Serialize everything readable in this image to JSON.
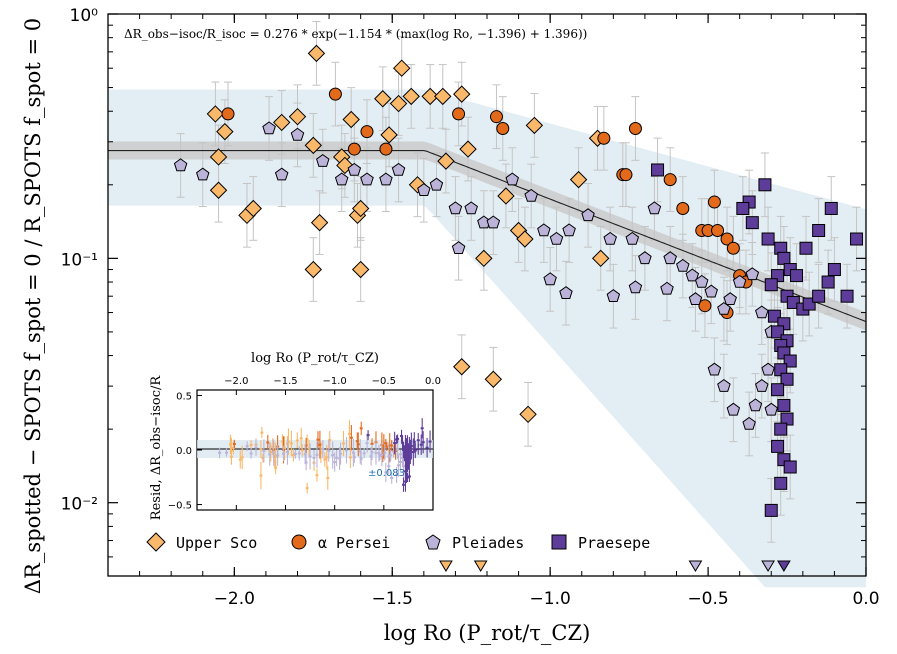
{
  "chart_data": {
    "type": "scatter",
    "formula": "ΔR_obs−isoc/R_isoc = 0.276 * exp(−1.154 * (max(log Ro, −1.396) + 1.396))",
    "xlabel": "log Ro (P_rot/τ_CZ)",
    "ylabel": "ΔR_spotted − SPOTS f_spot = 0 / R_SPOTS f_spot = 0",
    "xlim": [
      -2.4,
      0.0
    ],
    "ylim_log10": [
      -2.3,
      0.0
    ],
    "x_ticks": [
      "−2.0",
      "−1.5",
      "−1.0",
      "−0.5",
      "0.0"
    ],
    "x_tick_values": [
      -2.0,
      -1.5,
      -1.0,
      -0.5,
      0.0
    ],
    "y_ticks": [
      "10⁰",
      "10⁻¹",
      "10⁻²"
    ],
    "y_tick_values": [
      1.0,
      0.1,
      0.01
    ],
    "model": {
      "amplitude": 0.276,
      "slope": -1.154,
      "break": -1.396
    },
    "series": [
      {
        "name": "Upper Sco",
        "marker": "diamond",
        "color": "#f9b86a",
        "points": [
          [
            -2.06,
            0.39
          ],
          [
            -2.03,
            0.33
          ],
          [
            -1.96,
            0.15
          ],
          [
            -2.05,
            0.26
          ],
          [
            -2.05,
            0.19
          ],
          [
            -1.94,
            0.16
          ],
          [
            -1.85,
            0.36
          ],
          [
            -1.8,
            0.38
          ],
          [
            -1.74,
            0.69
          ],
          [
            -1.75,
            0.29
          ],
          [
            -1.73,
            0.14
          ],
          [
            -1.75,
            0.09
          ],
          [
            -1.63,
            0.37
          ],
          [
            -1.66,
            0.26
          ],
          [
            -1.65,
            0.24
          ],
          [
            -1.61,
            0.15
          ],
          [
            -1.6,
            0.16
          ],
          [
            -1.6,
            0.09
          ],
          [
            -1.53,
            0.45
          ],
          [
            -1.51,
            0.32
          ],
          [
            -1.48,
            0.43
          ],
          [
            -1.47,
            0.6
          ],
          [
            -1.44,
            0.46
          ],
          [
            -1.42,
            0.2
          ],
          [
            -1.38,
            0.46
          ],
          [
            -1.34,
            0.46
          ],
          [
            -1.33,
            0.25
          ],
          [
            -1.28,
            0.47
          ],
          [
            -1.26,
            0.28
          ],
          [
            -1.14,
            0.18
          ],
          [
            -1.1,
            0.13
          ],
          [
            -1.05,
            0.35
          ],
          [
            -1.08,
            0.12
          ],
          [
            -1.21,
            0.1
          ],
          [
            -1.18,
            0.032
          ],
          [
            -1.28,
            0.036
          ],
          [
            -1.07,
            0.023
          ],
          [
            -0.85,
            0.31
          ],
          [
            -0.91,
            0.21
          ],
          [
            -0.84,
            0.1
          ]
        ]
      },
      {
        "name": "α Persei",
        "marker": "circle",
        "color": "#e36a1b",
        "points": [
          [
            -2.02,
            0.39
          ],
          [
            -1.68,
            0.47
          ],
          [
            -1.62,
            0.28
          ],
          [
            -1.58,
            0.33
          ],
          [
            -1.52,
            0.28
          ],
          [
            -1.29,
            0.39
          ],
          [
            -1.17,
            0.38
          ],
          [
            -1.15,
            0.34
          ],
          [
            -0.83,
            0.31
          ],
          [
            -0.77,
            0.22
          ],
          [
            -0.76,
            0.22
          ],
          [
            -0.73,
            0.34
          ],
          [
            -0.62,
            0.21
          ],
          [
            -0.58,
            0.16
          ],
          [
            -0.52,
            0.13
          ],
          [
            -0.5,
            0.13
          ],
          [
            -0.48,
            0.17
          ],
          [
            -0.47,
            0.13
          ],
          [
            -0.44,
            0.12
          ],
          [
            -0.42,
            0.11
          ],
          [
            -0.4,
            0.085
          ],
          [
            -0.38,
            0.08
          ],
          [
            -0.51,
            0.064
          ],
          [
            -0.44,
            0.06
          ]
        ]
      },
      {
        "name": "Pleiades",
        "marker": "pentagon",
        "color": "#bcb4d8",
        "points": [
          [
            -2.17,
            0.24
          ],
          [
            -2.1,
            0.22
          ],
          [
            -1.89,
            0.34
          ],
          [
            -1.85,
            0.22
          ],
          [
            -1.8,
            0.32
          ],
          [
            -1.72,
            0.25
          ],
          [
            -1.66,
            0.21
          ],
          [
            -1.62,
            0.23
          ],
          [
            -1.58,
            0.21
          ],
          [
            -1.52,
            0.21
          ],
          [
            -1.48,
            0.23
          ],
          [
            -1.4,
            0.19
          ],
          [
            -1.36,
            0.2
          ],
          [
            -1.3,
            0.16
          ],
          [
            -1.29,
            0.11
          ],
          [
            -1.25,
            0.16
          ],
          [
            -1.21,
            0.14
          ],
          [
            -1.18,
            0.14
          ],
          [
            -1.12,
            0.21
          ],
          [
            -1.06,
            0.18
          ],
          [
            -1.02,
            0.13
          ],
          [
            -0.98,
            0.12
          ],
          [
            -0.94,
            0.13
          ],
          [
            -0.88,
            0.15
          ],
          [
            -0.81,
            0.12
          ],
          [
            -0.74,
            0.12
          ],
          [
            -0.7,
            0.1
          ],
          [
            -0.67,
            0.16
          ],
          [
            -0.62,
            0.1
          ],
          [
            -0.58,
            0.093
          ],
          [
            -0.55,
            0.085
          ],
          [
            -0.52,
            0.08
          ],
          [
            -0.49,
            0.073
          ],
          [
            -0.45,
            0.062
          ],
          [
            -0.43,
            0.068
          ],
          [
            -0.4,
            0.08
          ],
          [
            -0.36,
            0.086
          ],
          [
            -0.33,
            0.06
          ],
          [
            -0.3,
            0.05
          ],
          [
            -0.31,
            0.035
          ],
          [
            -0.33,
            0.03
          ],
          [
            -0.35,
            0.025
          ],
          [
            -0.3,
            0.024
          ],
          [
            -0.37,
            0.021
          ],
          [
            -0.42,
            0.024
          ],
          [
            -0.45,
            0.03
          ],
          [
            -0.48,
            0.035
          ],
          [
            -0.8,
            0.07
          ],
          [
            -0.73,
            0.076
          ],
          [
            -0.63,
            0.075
          ],
          [
            -0.54,
            0.068
          ],
          [
            -0.95,
            0.072
          ],
          [
            -1.0,
            0.082
          ]
        ]
      },
      {
        "name": "Praesepe",
        "marker": "square",
        "color": "#5e3c99",
        "points": [
          [
            -0.66,
            0.23
          ],
          [
            -0.32,
            0.2
          ],
          [
            -0.37,
            0.17
          ],
          [
            -0.39,
            0.16
          ],
          [
            -0.36,
            0.14
          ],
          [
            -0.31,
            0.12
          ],
          [
            -0.27,
            0.11
          ],
          [
            -0.26,
            0.1
          ],
          [
            -0.24,
            0.09
          ],
          [
            -0.22,
            0.085
          ],
          [
            -0.28,
            0.085
          ],
          [
            -0.3,
            0.078
          ],
          [
            -0.25,
            0.07
          ],
          [
            -0.23,
            0.066
          ],
          [
            -0.2,
            0.062
          ],
          [
            -0.18,
            0.065
          ],
          [
            -0.15,
            0.07
          ],
          [
            -0.12,
            0.08
          ],
          [
            -0.1,
            0.09
          ],
          [
            -0.06,
            0.07
          ],
          [
            -0.03,
            0.12
          ],
          [
            -0.11,
            0.16
          ],
          [
            -0.15,
            0.13
          ],
          [
            -0.19,
            0.11
          ],
          [
            -0.29,
            0.058
          ],
          [
            -0.26,
            0.054
          ],
          [
            -0.28,
            0.05
          ],
          [
            -0.25,
            0.046
          ],
          [
            -0.27,
            0.044
          ],
          [
            -0.26,
            0.041
          ],
          [
            -0.24,
            0.038
          ],
          [
            -0.27,
            0.035
          ],
          [
            -0.25,
            0.032
          ],
          [
            -0.28,
            0.029
          ],
          [
            -0.26,
            0.025
          ],
          [
            -0.25,
            0.022
          ],
          [
            -0.27,
            0.02
          ],
          [
            -0.28,
            0.017
          ],
          [
            -0.26,
            0.015
          ],
          [
            -0.24,
            0.014
          ],
          [
            -0.3,
            0.0093
          ],
          [
            -0.27,
            0.012
          ]
        ]
      }
    ],
    "upper_limits": [
      {
        "series": "Upper Sco",
        "x": -1.33
      },
      {
        "series": "Upper Sco",
        "x": -1.22
      },
      {
        "series": "Pleiades",
        "x": -0.54
      },
      {
        "series": "Pleiades",
        "x": -0.31
      },
      {
        "series": "Praesepe",
        "x": -0.26
      }
    ],
    "legend": [
      "Upper Sco",
      "α Persei",
      "Pleiades",
      "Praesepe"
    ],
    "legend_position": "bottom-left",
    "inset": {
      "title": "log Ro (P_rot/τ_CZ)",
      "ylabel": "Resid, ΔR_obs−isoc/R",
      "x_ticks": [
        "−2.0",
        "−1.5",
        "−1.0",
        "−0.5",
        "0.0"
      ],
      "x_tick_values": [
        -2.0,
        -1.5,
        -1.0,
        -0.5,
        0.0
      ],
      "y_ticks": [
        "0.5",
        "0.0",
        "−0.5"
      ],
      "y_tick_values": [
        0.5,
        0.0,
        -0.5
      ],
      "xlim": [
        -2.4,
        0.0
      ],
      "ylim": [
        -0.55,
        0.55
      ],
      "scatter_label": "±0.083",
      "scatter": 0.083
    }
  },
  "colors": {
    "upper_sco": "#f9b86a",
    "alpha_persei": "#e36a1b",
    "pleiades": "#bcb4d8",
    "praesepe": "#5e3c99",
    "band": "#dae8f0",
    "inner_band": "#c8c8c8"
  }
}
